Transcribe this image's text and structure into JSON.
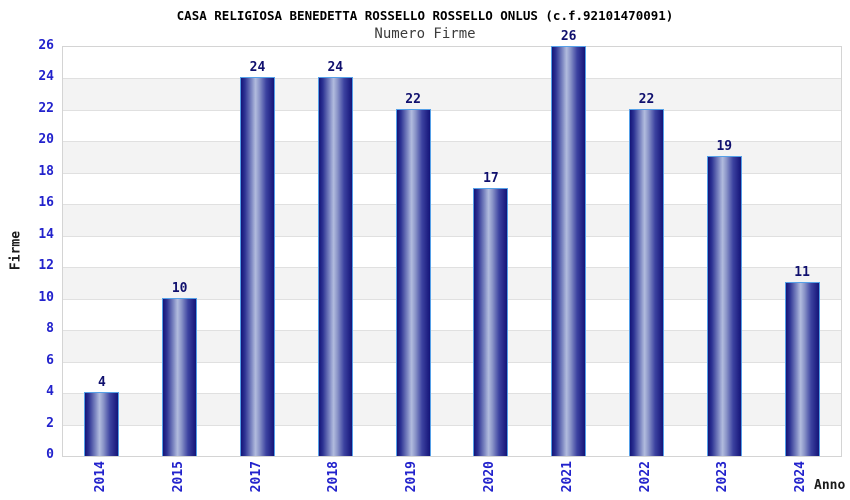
{
  "chart_data": {
    "type": "bar",
    "title": "CASA RELIGIOSA BENEDETTA ROSSELLO ROSSELLO ONLUS (c.f.92101470091)",
    "subtitle": "Numero Firme",
    "categories": [
      "2014",
      "2015",
      "2017",
      "2018",
      "2019",
      "2020",
      "2021",
      "2022",
      "2023",
      "2024"
    ],
    "values": [
      4,
      10,
      24,
      24,
      22,
      17,
      26,
      22,
      19,
      11
    ],
    "xlabel": "Anno",
    "ylabel": "Firme",
    "ylim": [
      0,
      26
    ],
    "ytick_step": 2,
    "yticks": [
      0,
      2,
      4,
      6,
      8,
      10,
      12,
      14,
      16,
      18,
      20,
      22,
      24,
      26
    ],
    "bar_value_labels_shown": true,
    "legend": "none",
    "grid": "horizontal alternating bands every 2 units"
  },
  "colors": {
    "bg": "#ffffff",
    "title_color": "#000000",
    "subtitle_color": "#3c3c3c",
    "tick_label": "#2222cc",
    "value_label": "#10106e",
    "axis_label": "#1a1a1a",
    "bar_dark": "#141478",
    "bar_light": "#b2bcde",
    "bar_border": "#55a0e8",
    "band_gray": "#f3f3f3",
    "band_white": "#ffffff",
    "gridline": "#e0e0e0",
    "plot_border": "#d4d4d4"
  }
}
